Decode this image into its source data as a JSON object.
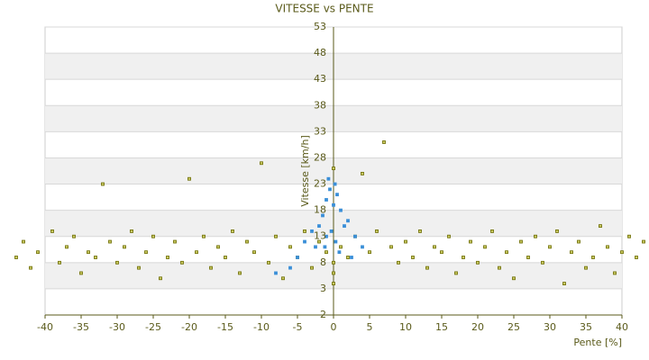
{
  "chart_data": {
    "type": "scatter",
    "title": "VITESSE vs PENTE",
    "x_label": "Pente [%]",
    "y_label": "Vitesse [km/h]",
    "xlim": [
      -40,
      40
    ],
    "xticks": [
      -40,
      -35,
      -30,
      -25,
      -20,
      -15,
      -10,
      -5,
      0,
      5,
      10,
      15,
      20,
      25,
      30,
      35,
      40
    ],
    "ylim": [
      -2,
      53
    ],
    "yticks": [
      -2,
      3,
      8,
      13,
      18,
      23,
      28,
      33,
      38,
      43,
      48,
      53
    ],
    "grid": true,
    "series": [
      {
        "color": "#6b6b00",
        "x": [
          -44,
          -43,
          -42,
          -41,
          -39,
          -38,
          -37,
          -36,
          -35,
          -34,
          -33,
          -32,
          -31,
          -30,
          -29,
          -28,
          -27,
          -26,
          -25,
          -24,
          -23,
          -22,
          -21,
          -20,
          -19,
          -18,
          -17,
          -16,
          -15,
          -14,
          -13,
          -12,
          -11,
          -10,
          -9,
          -8,
          -7,
          -6,
          -5,
          -4,
          -3,
          -2,
          -1,
          0,
          0,
          0,
          0,
          1,
          2,
          3,
          4,
          5,
          6,
          7,
          8,
          9,
          10,
          11,
          12,
          13,
          14,
          15,
          16,
          17,
          18,
          19,
          20,
          21,
          22,
          23,
          24,
          25,
          26,
          27,
          28,
          29,
          30,
          31,
          32,
          33,
          34,
          35,
          36,
          37,
          38,
          39,
          40,
          41,
          42,
          43,
          44
        ],
        "values": [
          9,
          12,
          7,
          10,
          14,
          8,
          11,
          13,
          6,
          10,
          9,
          23,
          12,
          8,
          11,
          14,
          7,
          10,
          13,
          5,
          9,
          12,
          8,
          24,
          10,
          13,
          7,
          11,
          9,
          14,
          6,
          12,
          10,
          27,
          8,
          13,
          5,
          11,
          9,
          14,
          7,
          12,
          10,
          4,
          6,
          8,
          26,
          11,
          9,
          13,
          25,
          10,
          14,
          31,
          11,
          8,
          12,
          9,
          14,
          7,
          11,
          10,
          13,
          6,
          9,
          12,
          8,
          11,
          14,
          7,
          10,
          5,
          12,
          9,
          13,
          8,
          11,
          14,
          4,
          10,
          12,
          7,
          9,
          15,
          11,
          6,
          10,
          13,
          9,
          12,
          5
        ]
      },
      {
        "color": "#3a8fd8",
        "x": [
          -1,
          -0.5,
          0,
          0.5,
          1,
          -1.5,
          -2,
          2,
          -3,
          3,
          -4,
          4,
          -5,
          -6,
          -8,
          -0.3,
          0.3,
          1.5,
          -1,
          0.8,
          -2.5,
          2.5,
          -0.7,
          0.2,
          -1.2
        ],
        "values": [
          20,
          22,
          19,
          21,
          18,
          17,
          15,
          16,
          14,
          13,
          12,
          11,
          9,
          7,
          6,
          14,
          12,
          15,
          13,
          10,
          11,
          9,
          24,
          23,
          11
        ]
      }
    ]
  }
}
